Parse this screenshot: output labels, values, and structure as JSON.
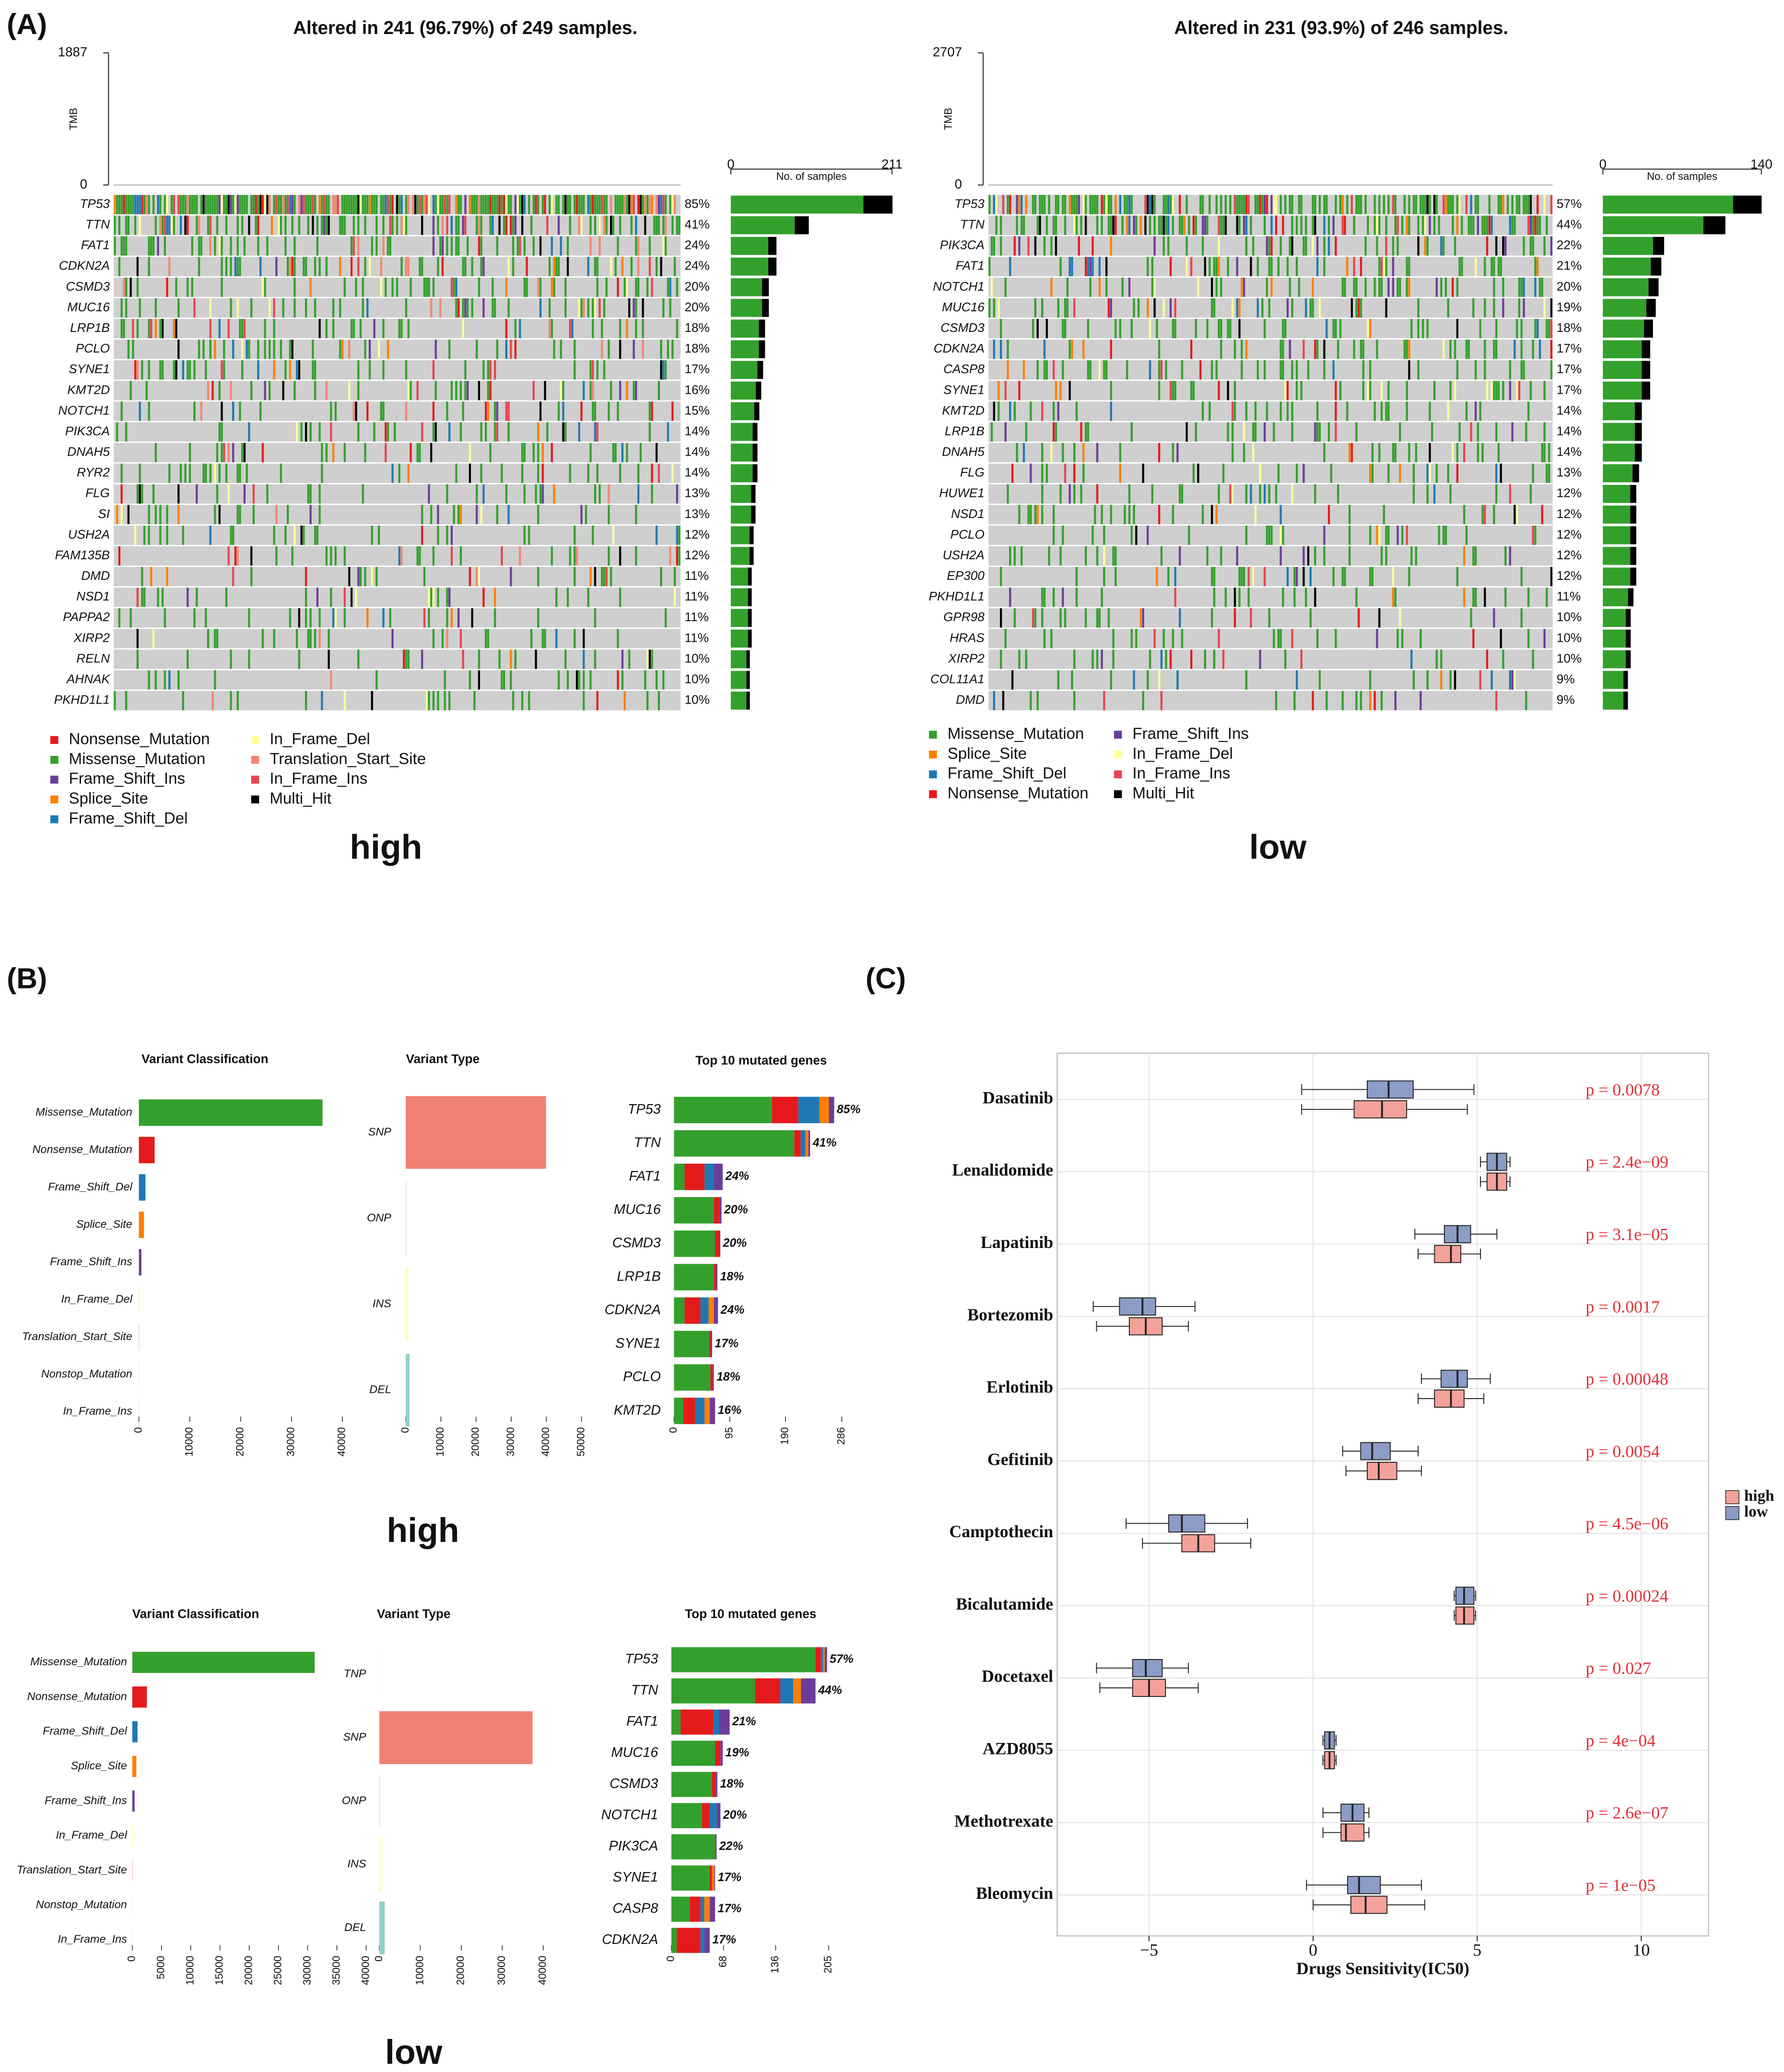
{
  "panels": [
    "(A)",
    "(B)",
    "(C)"
  ],
  "chart_data": [
    {
      "type": "oncoplot",
      "title": "Altered in 241 (96.79%) of 249 samples.",
      "samples": 249,
      "ylabel": "TMB",
      "ylim": [
        0,
        1887
      ],
      "yticks": [
        0,
        1887
      ],
      "bar_xlabel": "No. of samples",
      "xlim": [
        0,
        211
      ],
      "xticks": [
        0,
        211
      ],
      "color": "#33a02c",
      "categories": [
        "TP53",
        "TTN",
        "FAT1",
        "CDKN2A",
        "CSMD3",
        "MUC16",
        "LRP1B",
        "PCLO",
        "SYNE1",
        "KMT2D",
        "NOTCH1",
        "PIK3CA",
        "DNAH5",
        "RYR2",
        "FLG",
        "SI",
        "USH2A",
        "FAM135B",
        "DMD",
        "NSD1",
        "PAPPA2",
        "XIRP2",
        "RELN",
        "AHNAK",
        "PKHD1L1"
      ],
      "values": [
        85,
        41,
        24,
        24,
        20,
        20,
        18,
        18,
        17,
        16,
        15,
        14,
        14,
        14,
        13,
        13,
        12,
        12,
        11,
        11,
        11,
        11,
        10,
        10,
        10
      ],
      "value_labels": [
        "85%",
        "41%",
        "24%",
        "24%",
        "20%",
        "20%",
        "18%",
        "18%",
        "17%",
        "16%",
        "15%",
        "14%",
        "14%",
        "14%",
        "13%",
        "13%",
        "12%",
        "12%",
        "11%",
        "11%",
        "11%",
        "11%",
        "10%",
        "10%",
        "10%"
      ],
      "legend": [
        {
          "name": "Nonsense_Mutation",
          "color": "#e41a1c"
        },
        {
          "name": "Missense_Mutation",
          "color": "#33a02c"
        },
        {
          "name": "Frame_Shift_Ins",
          "color": "#6a3d9a"
        },
        {
          "name": "Splice_Site",
          "color": "#ff7f00"
        },
        {
          "name": "Frame_Shift_Del",
          "color": "#1f78b4"
        },
        {
          "name": "In_Frame_Del",
          "color": "#ffff99"
        },
        {
          "name": "Translation_Start_Site",
          "color": "#f4866e"
        },
        {
          "name": "In_Frame_Ins",
          "color": "#e8434d"
        },
        {
          "name": "Multi_Hit",
          "color": "#000000"
        }
      ],
      "caption": "high"
    },
    {
      "type": "oncoplot",
      "title": "Altered in 231 (93.9%) of 246 samples.",
      "samples": 246,
      "ylabel": "TMB",
      "ylim": [
        0,
        2707
      ],
      "yticks": [
        0,
        2707
      ],
      "bar_xlabel": "No. of samples",
      "xlim": [
        0,
        140
      ],
      "xticks": [
        0,
        140
      ],
      "color": "#33a02c",
      "categories": [
        "TP53",
        "TTN",
        "PIK3CA",
        "FAT1",
        "NOTCH1",
        "MUC16",
        "CSMD3",
        "CDKN2A",
        "CASP8",
        "SYNE1",
        "KMT2D",
        "LRP1B",
        "DNAH5",
        "FLG",
        "HUWE1",
        "NSD1",
        "PCLO",
        "USH2A",
        "EP300",
        "PKHD1L1",
        "GPR98",
        "HRAS",
        "XIRP2",
        "COL11A1",
        "DMD"
      ],
      "values": [
        57,
        44,
        22,
        21,
        20,
        19,
        18,
        17,
        17,
        17,
        14,
        14,
        14,
        13,
        12,
        12,
        12,
        12,
        12,
        11,
        10,
        10,
        10,
        9,
        9
      ],
      "value_labels": [
        "57%",
        "44%",
        "22%",
        "21%",
        "20%",
        "19%",
        "18%",
        "17%",
        "17%",
        "17%",
        "14%",
        "14%",
        "14%",
        "13%",
        "12%",
        "12%",
        "12%",
        "12%",
        "12%",
        "11%",
        "10%",
        "10%",
        "10%",
        "9%",
        "9%"
      ],
      "legend": [
        {
          "name": "Missense_Mutation",
          "color": "#33a02c"
        },
        {
          "name": "Splice_Site",
          "color": "#ff7f00"
        },
        {
          "name": "Frame_Shift_Del",
          "color": "#1f78b4"
        },
        {
          "name": "Nonsense_Mutation",
          "color": "#e41a1c"
        },
        {
          "name": "Frame_Shift_Ins",
          "color": "#6a3d9a"
        },
        {
          "name": "In_Frame_Del",
          "color": "#ffff99"
        },
        {
          "name": "In_Frame_Ins",
          "color": "#e8434d"
        },
        {
          "name": "Multi_Hit",
          "color": "#000000"
        }
      ],
      "caption": "low"
    },
    {
      "type": "summary",
      "caption": "high",
      "classification": {
        "title": "Variant Classification",
        "categories": [
          "Missense_Mutation",
          "Nonsense_Mutation",
          "Frame_Shift_Del",
          "Splice_Site",
          "Frame_Shift_Ins",
          "In_Frame_Del",
          "Translation_Start_Site",
          "Nonstop_Mutation",
          "In_Frame_Ins"
        ],
        "values": [
          36100,
          3100,
          1300,
          1000,
          500,
          200,
          50,
          30,
          20
        ],
        "colors": [
          "#33a02c",
          "#e41a1c",
          "#1f78b4",
          "#ff7f00",
          "#6a3d9a",
          "#ffff99",
          "#f4866e",
          "#a6cee3",
          "#e8434d"
        ],
        "xlim": [
          0,
          40000
        ],
        "xticks": [
          0,
          10000,
          20000,
          30000,
          40000
        ]
      },
      "variant_type": {
        "title": "Variant Type",
        "categories": [
          "SNP",
          "ONP",
          "INS",
          "DEL"
        ],
        "values": [
          39900,
          100,
          600,
          1100
        ],
        "colors": [
          "#f08070",
          "#bebada",
          "#ffffb3",
          "#8dd3c7"
        ],
        "xlim": [
          0,
          50000
        ],
        "xticks": [
          0,
          10000,
          20000,
          30000,
          40000,
          50000
        ]
      },
      "top_genes": {
        "title": "Top 10  mutated genes",
        "categories": [
          "TP53",
          "TTN",
          "FAT1",
          "MUC16",
          "CSMD3",
          "LRP1B",
          "CDKN2A",
          "SYNE1",
          "PCLO",
          "KMT2D"
        ],
        "series": [
          {
            "color": "#33a02c",
            "values": [
              167,
              205,
              18,
              68,
              70,
              68,
              18,
              60,
              62,
              16
            ]
          },
          {
            "color": "#e41a1c",
            "values": [
              45,
              11,
              34,
              9,
              7,
              4,
              27,
              3,
              4,
              20
            ]
          },
          {
            "color": "#1f78b4",
            "values": [
              36,
              8,
              16,
              0,
              0,
              0,
              14,
              0,
              0,
              16
            ]
          },
          {
            "color": "#ff7f00",
            "values": [
              16,
              5,
              0,
              0,
              0,
              0,
              9,
              0,
              0,
              9
            ]
          },
          {
            "color": "#6a3d9a",
            "values": [
              9,
              3,
              15,
              4,
              2,
              2,
              7,
              2,
              2,
              9
            ]
          }
        ],
        "labels": [
          "85%",
          "41%",
          "24%",
          "20%",
          "20%",
          "18%",
          "24%",
          "17%",
          "18%",
          "16%"
        ],
        "xlim": [
          0,
          286
        ],
        "xticks": [
          0,
          95,
          190,
          286
        ]
      }
    },
    {
      "type": "summary",
      "caption": "low",
      "classification": {
        "title": "Variant Classification",
        "categories": [
          "Missense_Mutation",
          "Nonsense_Mutation",
          "Frame_Shift_Del",
          "Splice_Site",
          "Frame_Shift_Ins",
          "In_Frame_Del",
          "Translation_Start_Site",
          "Nonstop_Mutation",
          "In_Frame_Ins"
        ],
        "values": [
          31200,
          2500,
          900,
          700,
          400,
          100,
          50,
          20,
          10
        ],
        "colors": [
          "#33a02c",
          "#e41a1c",
          "#1f78b4",
          "#ff7f00",
          "#6a3d9a",
          "#ffff99",
          "#f4866e",
          "#a6cee3",
          "#e8434d"
        ],
        "xlim": [
          0,
          40000
        ],
        "xticks": [
          0,
          5000,
          10000,
          15000,
          20000,
          25000,
          30000,
          35000,
          40000
        ]
      },
      "variant_type": {
        "title": "Variant Type",
        "categories": [
          "TNP",
          "SNP",
          "ONP",
          "INS",
          "DEL"
        ],
        "values": [
          5,
          37400,
          80,
          500,
          1300
        ],
        "colors": [
          "#fb8072",
          "#f08070",
          "#bebada",
          "#ffffb3",
          "#8dd3c7"
        ],
        "xlim": [
          0,
          40000
        ],
        "xticks": [
          0,
          10000,
          20000,
          30000,
          40000
        ]
      },
      "top_genes": {
        "title": "Top 10 mutated genes",
        "categories": [
          "TP53",
          "TTN",
          "FAT1",
          "MUC16",
          "CSMD3",
          "NOTCH1",
          "PIK3CA",
          "SYNE1",
          "CASP8",
          "CDKN2A"
        ],
        "series": [
          {
            "color": "#33a02c",
            "values": [
              188,
              109,
              12,
              57,
              53,
              40,
              57,
              50,
              24,
              7
            ]
          },
          {
            "color": "#e41a1c",
            "values": [
              7,
              33,
              43,
              7,
              5,
              10,
              1,
              3,
              14,
              31
            ]
          },
          {
            "color": "#1f78b4",
            "values": [
              3,
              17,
              7,
              0,
              0,
              9,
              0,
              0,
              5,
              5
            ]
          },
          {
            "color": "#ff7f00",
            "values": [
              2,
              10,
              0,
              0,
              0,
              0,
              0,
              3,
              7,
              0
            ]
          },
          {
            "color": "#6a3d9a",
            "values": [
              3,
              19,
              14,
              3,
              2,
              5,
              1,
              1,
              7,
              7
            ]
          }
        ],
        "labels": [
          "57%",
          "44%",
          "21%",
          "19%",
          "18%",
          "20%",
          "22%",
          "17%",
          "17%",
          "17%"
        ],
        "xlim": [
          0,
          205
        ],
        "xticks": [
          0,
          68,
          136,
          205
        ]
      }
    },
    {
      "type": "box",
      "xlabel": "Drugs Sensitivity(IC50)",
      "categories": [
        "Dasatinib",
        "Lenalidomide",
        "Lapatinib",
        "Bortezomib",
        "Erlotinib",
        "Gefitinib",
        "Camptothecin",
        "Bicalutamide",
        "Docetaxel",
        "AZD8055",
        "Methotrexate",
        "Bleomycin"
      ],
      "xlim": [
        -7.8,
        12.05
      ],
      "xticks": [
        {
          "value": -5,
          "label": "−5"
        },
        0,
        5,
        10
      ],
      "grid": true,
      "legend": "right",
      "series": [
        {
          "name": "high",
          "color": "#f4a19a",
          "q1": [
            1.25,
            5.3,
            3.7,
            -5.6,
            3.7,
            1.65,
            -4.0,
            4.35,
            -5.5,
            0.35,
            0.85,
            1.15
          ],
          "median": [
            2.1,
            5.6,
            4.2,
            -5.1,
            4.2,
            2.0,
            -3.5,
            4.6,
            -5.0,
            0.5,
            1.0,
            1.6
          ],
          "q3": [
            2.85,
            5.9,
            4.5,
            -4.6,
            4.6,
            2.55,
            -3.0,
            4.9,
            -4.5,
            0.65,
            1.55,
            2.25
          ],
          "whislo": [
            -0.35,
            5.1,
            3.2,
            -6.6,
            3.2,
            1.0,
            -5.2,
            4.3,
            -6.5,
            0.3,
            0.3,
            0.0
          ],
          "whishi": [
            4.7,
            6.0,
            5.1,
            -3.8,
            5.2,
            3.3,
            -1.9,
            4.95,
            -3.5,
            0.7,
            1.7,
            3.4
          ]
        },
        {
          "name": "low",
          "color": "#8c9cc6",
          "q1": [
            1.65,
            5.3,
            4.0,
            -5.9,
            3.9,
            1.45,
            -4.4,
            4.35,
            -5.5,
            0.35,
            0.85,
            1.05
          ],
          "median": [
            2.3,
            5.6,
            4.4,
            -5.2,
            4.4,
            1.8,
            -4.0,
            4.6,
            -5.1,
            0.5,
            1.2,
            1.4
          ],
          "q3": [
            3.05,
            5.9,
            4.8,
            -4.8,
            4.7,
            2.35,
            -3.3,
            4.9,
            -4.6,
            0.65,
            1.55,
            2.05
          ],
          "whislo": [
            -0.35,
            5.1,
            3.1,
            -6.7,
            3.3,
            0.9,
            -5.7,
            4.3,
            -6.6,
            0.3,
            0.3,
            -0.2
          ],
          "whishi": [
            4.9,
            6.0,
            5.6,
            -3.6,
            5.4,
            3.2,
            -2.0,
            4.95,
            -3.8,
            0.7,
            1.7,
            3.3
          ]
        }
      ],
      "annotations": [
        "p = 0.0078",
        "p = 2.4e−09",
        "p = 3.1e−05",
        "p = 0.0017",
        "p = 0.00048",
        "p = 0.0054",
        "p = 4.5e−06",
        "p = 0.00024",
        "p = 0.027",
        "p = 4e−04",
        "p = 2.6e−07",
        "p = 1e−05"
      ]
    }
  ]
}
